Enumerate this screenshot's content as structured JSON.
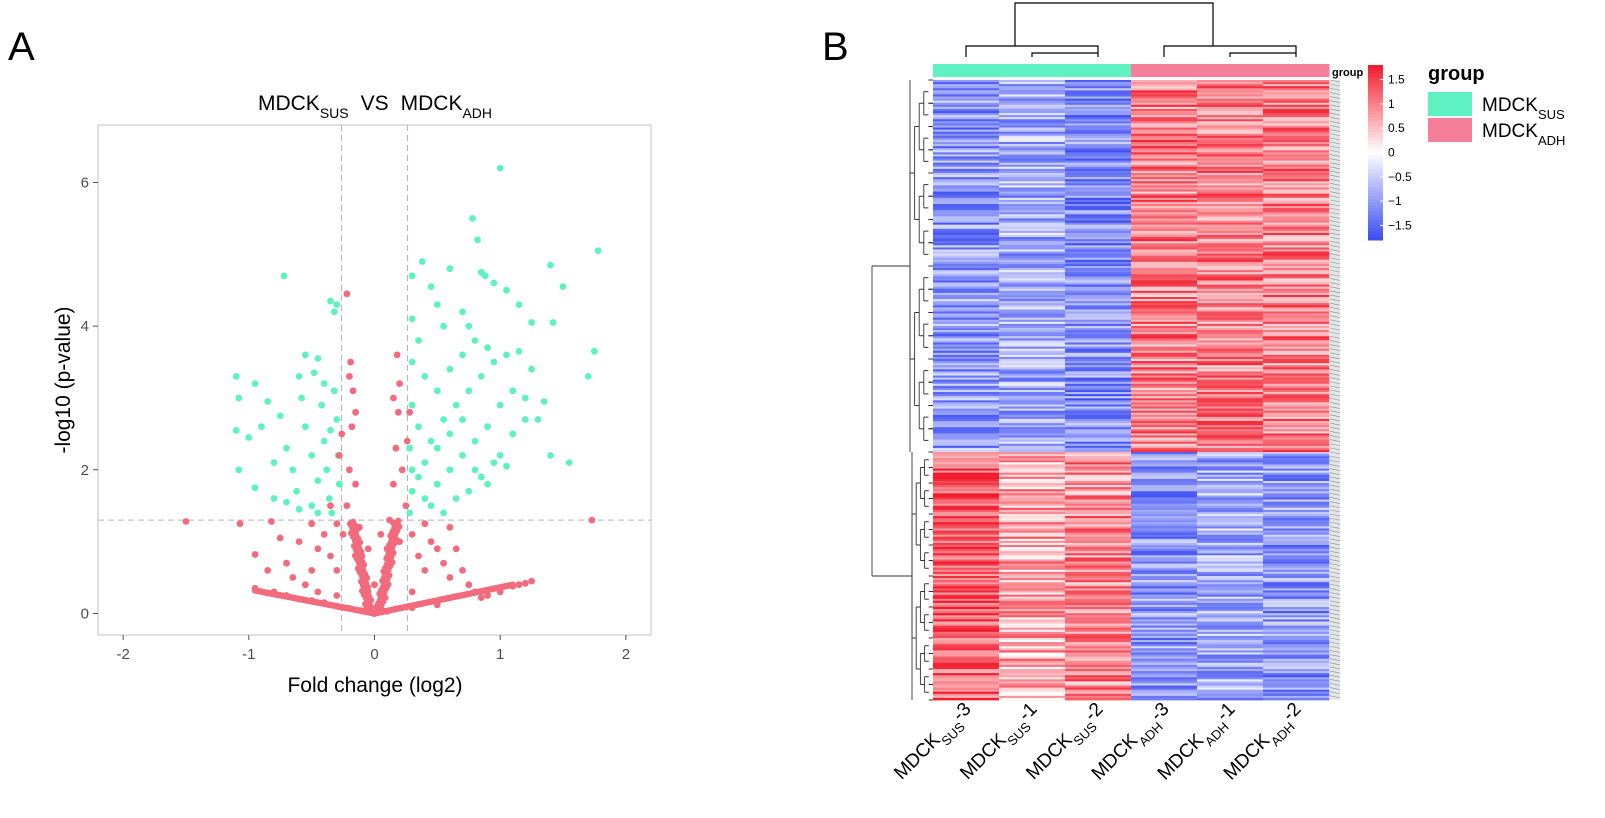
{
  "panels": {
    "a": "A",
    "b": "B"
  },
  "chart_data": [
    {
      "type": "scatter",
      "title": {
        "base1": "MDCK",
        "sub1": "SUS",
        "mid": "VS",
        "base2": "MDCK",
        "sub2": "ADH"
      },
      "xlabel": "Fold change (log2)",
      "ylabel": "-log10 (p-value)",
      "xlim": [
        -2.2,
        2.2
      ],
      "ylim": [
        -0.3,
        6.8
      ],
      "xticks": [
        -2,
        -1,
        0,
        1,
        2
      ],
      "yticks": [
        0,
        2,
        4,
        6
      ],
      "grid": false,
      "thresholds": {
        "x": [
          -0.263,
          0.263
        ],
        "y": 1.3
      },
      "colors": {
        "significant": "#5ef2c2",
        "not_significant": "#f26b7d",
        "threshold_line": "#b3b3b3",
        "panel_border": "#cccccc"
      },
      "series": [
        {
          "values": [
            [
              -0.72,
              4.7
            ],
            [
              -0.35,
              4.35
            ],
            [
              -0.32,
              4.2
            ],
            [
              -0.3,
              4.3
            ],
            [
              -0.55,
              3.6
            ],
            [
              -0.45,
              3.55
            ],
            [
              -0.6,
              3.3
            ],
            [
              -1.1,
              3.3
            ],
            [
              -1.08,
              3.0
            ],
            [
              -0.95,
              3.2
            ],
            [
              -0.85,
              2.95
            ],
            [
              -0.75,
              2.75
            ],
            [
              -0.9,
              2.6
            ],
            [
              -1.0,
              2.45
            ],
            [
              -1.1,
              2.55
            ],
            [
              -1.08,
              2.0
            ],
            [
              -0.95,
              1.75
            ],
            [
              -0.8,
              2.1
            ],
            [
              -0.7,
              2.3
            ],
            [
              -0.65,
              2.0
            ],
            [
              -0.62,
              1.7
            ],
            [
              -0.55,
              2.6
            ],
            [
              -0.5,
              2.2
            ],
            [
              -0.45,
              1.85
            ],
            [
              -0.42,
              2.9
            ],
            [
              -0.4,
              2.4
            ],
            [
              -0.38,
              2.0
            ],
            [
              -0.36,
              1.6
            ],
            [
              -0.34,
              1.4
            ],
            [
              -0.32,
              3.1
            ],
            [
              -0.3,
              2.7
            ],
            [
              -0.29,
              2.2
            ],
            [
              -0.28,
              1.8
            ],
            [
              -0.45,
              1.4
            ],
            [
              -0.5,
              1.5
            ],
            [
              -0.6,
              1.45
            ],
            [
              -0.7,
              1.55
            ],
            [
              -0.8,
              1.6
            ],
            [
              -0.58,
              3.0
            ],
            [
              -0.48,
              3.35
            ],
            [
              -0.4,
              3.2
            ],
            [
              -0.35,
              2.55
            ],
            [
              0.3,
              4.7
            ],
            [
              0.38,
              4.9
            ],
            [
              0.45,
              4.55
            ],
            [
              0.3,
              4.1
            ],
            [
              0.35,
              3.8
            ],
            [
              0.5,
              4.3
            ],
            [
              0.55,
              4.0
            ],
            [
              0.3,
              3.5
            ],
            [
              0.4,
              3.3
            ],
            [
              0.5,
              3.1
            ],
            [
              0.6,
              3.4
            ],
            [
              0.7,
              3.6
            ],
            [
              0.8,
              3.8
            ],
            [
              0.9,
              3.7
            ],
            [
              0.3,
              2.9
            ],
            [
              0.35,
              2.6
            ],
            [
              0.28,
              2.3
            ],
            [
              0.3,
              2.0
            ],
            [
              0.3,
              1.7
            ],
            [
              0.28,
              1.4
            ],
            [
              0.4,
              1.6
            ],
            [
              0.5,
              1.8
            ],
            [
              0.6,
              2.0
            ],
            [
              0.7,
              2.2
            ],
            [
              0.8,
              2.4
            ],
            [
              0.9,
              2.6
            ],
            [
              1.0,
              2.9
            ],
            [
              1.1,
              3.1
            ],
            [
              1.2,
              3.0
            ],
            [
              0.45,
              2.4
            ],
            [
              0.55,
              2.7
            ],
            [
              0.65,
              2.9
            ],
            [
              0.75,
              3.1
            ],
            [
              0.85,
              3.3
            ],
            [
              0.95,
              3.5
            ],
            [
              1.05,
              3.6
            ],
            [
              0.4,
              2.1
            ],
            [
              0.5,
              2.3
            ],
            [
              0.6,
              2.5
            ],
            [
              0.7,
              2.7
            ],
            [
              0.8,
              2.0
            ],
            [
              0.9,
              1.8
            ],
            [
              1.0,
              2.2
            ],
            [
              1.1,
              2.5
            ],
            [
              1.2,
              2.7
            ],
            [
              0.35,
              1.9
            ],
            [
              0.45,
              1.5
            ],
            [
              0.55,
              1.4
            ],
            [
              0.65,
              1.6
            ],
            [
              0.75,
              1.7
            ],
            [
              0.85,
              1.9
            ],
            [
              0.95,
              2.1
            ],
            [
              1.0,
              6.2
            ],
            [
              0.78,
              5.5
            ],
            [
              0.82,
              5.2
            ],
            [
              0.85,
              4.75
            ],
            [
              0.88,
              4.7
            ],
            [
              0.95,
              4.6
            ],
            [
              1.05,
              4.5
            ],
            [
              1.15,
              4.3
            ],
            [
              1.25,
              4.05
            ],
            [
              1.4,
              4.85
            ],
            [
              1.5,
              4.55
            ],
            [
              1.78,
              5.05
            ],
            [
              1.75,
              3.65
            ],
            [
              1.7,
              3.3
            ],
            [
              1.42,
              4.05
            ],
            [
              1.3,
              2.7
            ],
            [
              1.35,
              2.95
            ],
            [
              1.55,
              2.1
            ],
            [
              1.4,
              2.2
            ],
            [
              1.05,
              2.05
            ],
            [
              1.25,
              3.4
            ],
            [
              1.15,
              3.65
            ],
            [
              0.6,
              4.8
            ],
            [
              0.7,
              4.2
            ],
            [
              0.75,
              4.0
            ]
          ]
        },
        {
          "values": [
            [
              -1.5,
              1.28
            ],
            [
              -1.07,
              1.25
            ],
            [
              -0.82,
              1.28
            ],
            [
              -0.95,
              0.82
            ],
            [
              -0.7,
              0.7
            ],
            [
              -0.65,
              0.5
            ],
            [
              -0.55,
              0.4
            ],
            [
              -0.5,
              0.6
            ],
            [
              -0.45,
              0.9
            ],
            [
              -0.4,
              1.1
            ],
            [
              -0.35,
              0.8
            ],
            [
              -0.3,
              0.6
            ],
            [
              -0.25,
              1.1
            ],
            [
              -0.22,
              1.5
            ],
            [
              -0.2,
              2.0
            ],
            [
              -0.18,
              2.6
            ],
            [
              -0.17,
              3.1
            ],
            [
              -0.19,
              3.5
            ],
            [
              -0.2,
              3.3
            ],
            [
              -0.22,
              4.45
            ],
            [
              -0.15,
              1.8
            ],
            [
              -0.12,
              1.2
            ],
            [
              -0.1,
              0.8
            ],
            [
              -0.08,
              0.5
            ],
            [
              -0.05,
              0.3
            ],
            [
              -0.6,
              1.0
            ],
            [
              -0.75,
              1.05
            ],
            [
              -0.85,
              0.6
            ],
            [
              -0.95,
              0.35
            ],
            [
              -0.8,
              0.3
            ],
            [
              -0.7,
              0.25
            ],
            [
              -0.6,
              0.2
            ],
            [
              -0.5,
              0.18
            ],
            [
              -0.4,
              0.15
            ],
            [
              -0.3,
              0.1
            ],
            [
              -0.2,
              0.07
            ],
            [
              -0.1,
              0.04
            ],
            [
              0.0,
              0.0
            ],
            [
              0.05,
              0.2
            ],
            [
              0.08,
              0.5
            ],
            [
              0.1,
              0.9
            ],
            [
              0.12,
              1.3
            ],
            [
              0.15,
              1.8
            ],
            [
              0.17,
              2.3
            ],
            [
              0.19,
              2.8
            ],
            [
              0.2,
              3.2
            ],
            [
              0.18,
              3.6
            ],
            [
              0.22,
              2.0
            ],
            [
              0.25,
              1.5
            ],
            [
              0.3,
              1.1
            ],
            [
              0.35,
              0.8
            ],
            [
              0.4,
              0.6
            ],
            [
              0.45,
              1.0
            ],
            [
              0.5,
              0.9
            ],
            [
              0.55,
              0.7
            ],
            [
              0.6,
              0.5
            ],
            [
              0.65,
              0.9
            ],
            [
              0.7,
              0.6
            ],
            [
              0.75,
              0.4
            ],
            [
              0.8,
              0.3
            ],
            [
              0.9,
              0.25
            ],
            [
              1.0,
              0.3
            ],
            [
              1.1,
              0.38
            ],
            [
              1.2,
              0.42
            ],
            [
              1.25,
              0.45
            ],
            [
              1.15,
              0.4
            ],
            [
              0.85,
              0.22
            ],
            [
              0.5,
              0.12
            ],
            [
              0.3,
              0.08
            ],
            [
              0.1,
              0.03
            ],
            [
              -0.45,
              0.3
            ],
            [
              -0.35,
              1.5
            ],
            [
              -0.3,
              1.25
            ],
            [
              -0.28,
              2.2
            ],
            [
              -0.26,
              2.5
            ],
            [
              0.26,
              2.4
            ],
            [
              0.28,
              2.8
            ],
            [
              1.73,
              1.3
            ],
            [
              0.6,
              1.2
            ],
            [
              0.4,
              1.25
            ],
            [
              -0.5,
              1.25
            ],
            [
              0.15,
              3.0
            ],
            [
              -0.15,
              2.8
            ],
            [
              0.0,
              0.4
            ],
            [
              -0.05,
              0.9
            ],
            [
              0.05,
              1.1
            ],
            [
              0.12,
              0.7
            ],
            [
              -0.12,
              0.6
            ],
            [
              0.3,
              0.3
            ],
            [
              -0.3,
              0.25
            ],
            [
              0.2,
              1.0
            ]
          ]
        }
      ]
    },
    {
      "type": "heatmap",
      "categories": [
        {
          "base": "MDCK",
          "sub": "SUS",
          "suffix": "-3"
        },
        {
          "base": "MDCK",
          "sub": "SUS",
          "suffix": "-1"
        },
        {
          "base": "MDCK",
          "sub": "SUS",
          "suffix": "-2"
        },
        {
          "base": "MDCK",
          "sub": "ADH",
          "suffix": "-3"
        },
        {
          "base": "MDCK",
          "sub": "ADH",
          "suffix": "-1"
        },
        {
          "base": "MDCK",
          "sub": "ADH",
          "suffix": "-2"
        }
      ],
      "column_group": [
        0,
        0,
        0,
        1,
        1,
        1
      ],
      "group_annotation_label": "group",
      "legend": {
        "title": "group",
        "items": [
          {
            "base": "MDCK",
            "sub": "SUS",
            "color": "#5ef2c2"
          },
          {
            "base": "MDCK",
            "sub": "ADH",
            "color": "#f57f98"
          }
        ]
      },
      "colorbar": {
        "ticks": [
          {
            "value": 1.5,
            "label": "1.5"
          },
          {
            "value": 1,
            "label": "1"
          },
          {
            "value": 0.5,
            "label": "0.5"
          },
          {
            "value": 0,
            "label": "0"
          },
          {
            "value": -0.5,
            "label": "−0.5"
          },
          {
            "value": -1,
            "label": "−1"
          },
          {
            "value": -1.5,
            "label": "−1.5"
          }
        ],
        "range": [
          -1.8,
          1.8
        ],
        "colors": {
          "low": "#3b4cf2",
          "mid": "#ffffff",
          "high": "#f21a2b"
        }
      },
      "row_blocks": [
        {
          "fraction": 0.6,
          "levels": [
            -1.0,
            -0.8,
            -1.1,
            1.0,
            1.0,
            1.0
          ]
        },
        {
          "fraction": 0.4,
          "levels": [
            1.3,
            0.7,
            0.9,
            -1.0,
            -0.8,
            -1.0
          ]
        }
      ]
    }
  ]
}
